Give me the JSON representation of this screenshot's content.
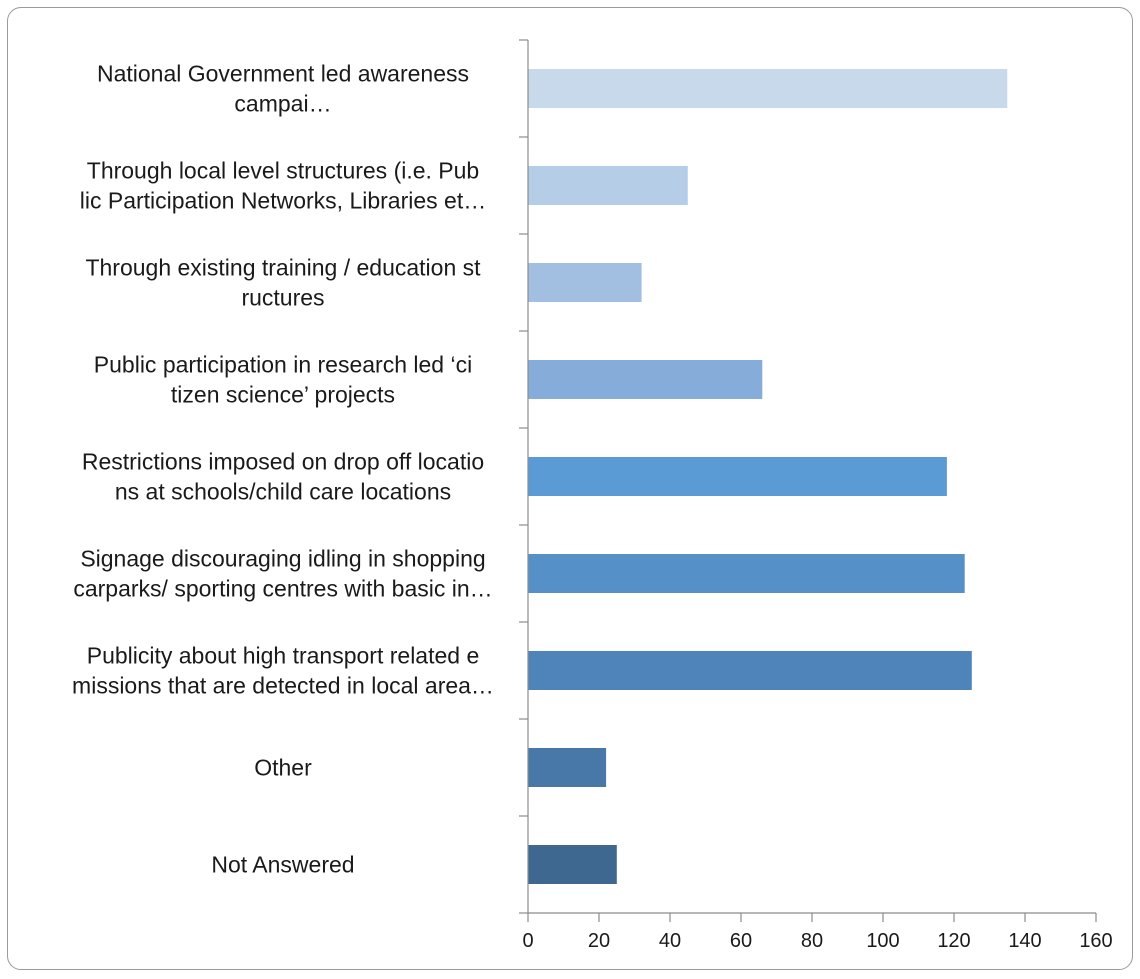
{
  "chart_data": {
    "type": "bar",
    "orientation": "horizontal",
    "title": "",
    "xlabel": "",
    "ylabel": "",
    "xlim": [
      0,
      160
    ],
    "x_ticks": [
      0,
      20,
      40,
      60,
      80,
      100,
      120,
      140,
      160
    ],
    "grid": false,
    "legend": "none",
    "categories": [
      [
        "National Government led awareness",
        "campai…"
      ],
      [
        "Through local level structures (i.e. Pub",
        "lic Participation Networks, Libraries et…"
      ],
      [
        "Through existing training / education st",
        "ructures"
      ],
      [
        "Public participation in research led ‘ci",
        "tizen science’ projects"
      ],
      [
        "Restrictions imposed on drop off locatio",
        "ns at schools/child care locations"
      ],
      [
        "Signage discouraging idling in shopping",
        "carparks/ sporting centres with basic in…"
      ],
      [
        "Publicity about high transport related e",
        "missions that are detected in local area…"
      ],
      [
        "Other"
      ],
      [
        "Not Answered"
      ]
    ],
    "values": [
      135,
      45,
      32,
      66,
      118,
      123,
      125,
      22,
      25
    ],
    "bar_colors": [
      "#c9d9ec",
      "#b6cde8",
      "#a2bfe2",
      "#86acda",
      "#5b9bd5",
      "#5590c8",
      "#4f84bb",
      "#4878a8",
      "#3e6890"
    ],
    "axis_color": "#8c8c8c",
    "frame_color": "#9a9a9a"
  }
}
